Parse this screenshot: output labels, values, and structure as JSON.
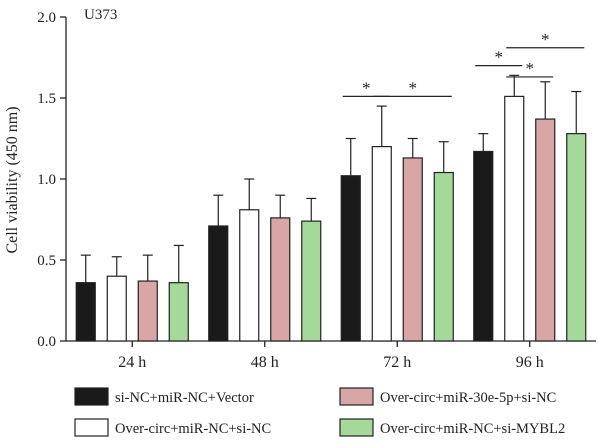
{
  "chart_data": {
    "type": "bar",
    "panel_label": "U373",
    "ylabel": "Cell viability (450 nm)",
    "xlabel": "",
    "categories": [
      "24 h",
      "48 h",
      "72 h",
      "96 h"
    ],
    "ylim": [
      0,
      2.0
    ],
    "yticks": [
      "0.0",
      "0.5",
      "1.0",
      "1.5",
      "2.0"
    ],
    "grid": false,
    "legend_position": "bottom",
    "series": [
      {
        "name": "si-NC+miR-NC+Vector",
        "color": "#1a1a1a",
        "values": [
          0.36,
          0.71,
          1.02,
          1.17
        ],
        "errors": [
          0.17,
          0.19,
          0.23,
          0.11
        ]
      },
      {
        "name": "Over-circ+miR-NC+si-NC",
        "color": "#ffffff",
        "values": [
          0.4,
          0.81,
          1.2,
          1.51
        ],
        "errors": [
          0.12,
          0.19,
          0.25,
          0.13
        ]
      },
      {
        "name": "Over-circ+miR-30e-5p+si-NC",
        "color": "#d9a6a6",
        "values": [
          0.37,
          0.76,
          1.13,
          1.37
        ],
        "errors": [
          0.16,
          0.14,
          0.12,
          0.23
        ]
      },
      {
        "name": "Over-circ+miR-NC+si-MYBL2",
        "color": "#a5d99a",
        "values": [
          0.36,
          0.74,
          1.04,
          1.28
        ],
        "errors": [
          0.23,
          0.14,
          0.19,
          0.26
        ]
      }
    ],
    "significance": [
      {
        "category": 2,
        "from_series": 0,
        "to_series": 1,
        "label": "*"
      },
      {
        "category": 2,
        "from_series": 1,
        "to_series": 3,
        "label": "*"
      },
      {
        "category": 3,
        "from_series": 0,
        "to_series": 1,
        "label": "*"
      },
      {
        "category": 3,
        "from_series": 1,
        "to_series": 2,
        "label": "*"
      },
      {
        "category": 3,
        "from_series": 1,
        "to_series": 3,
        "label": "*"
      }
    ]
  }
}
